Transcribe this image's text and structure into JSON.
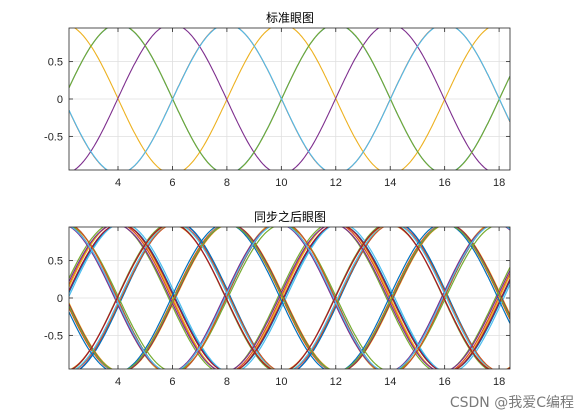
{
  "watermark": "CSDN @我爱C编程",
  "colors": {
    "blue": "#0072BD",
    "orange": "#D95319",
    "yellow": "#EDB120",
    "purple": "#7E2F8E",
    "green": "#77AC30",
    "cyan": "#4DBEEE",
    "red": "#A2142F"
  },
  "chart_data": [
    {
      "type": "line",
      "title": "标准眼图",
      "xlim": [
        2.2,
        18.4
      ],
      "ylim": [
        -0.95,
        0.95
      ],
      "xticks": [
        4,
        6,
        8,
        10,
        12,
        14,
        16,
        18
      ],
      "yticks": [
        -0.5,
        0,
        0.5
      ],
      "ytick_labels": [
        "-0.5",
        "0",
        "0.5"
      ],
      "grid": true,
      "period": 8,
      "crossings": [
        2,
        6,
        10,
        14,
        18
      ],
      "traces": 6,
      "spread": 0.02
    },
    {
      "type": "line",
      "title": "同步之后眼图",
      "xlim": [
        2.2,
        18.4
      ],
      "ylim": [
        -0.95,
        0.95
      ],
      "xticks": [
        4,
        6,
        8,
        10,
        12,
        14,
        16,
        18
      ],
      "yticks": [
        -0.5,
        0,
        0.5
      ],
      "ytick_labels": [
        "-0.5",
        "0",
        "0.5"
      ],
      "grid": true,
      "period": 8,
      "crossings": [
        2,
        6,
        10,
        14,
        18
      ],
      "traces": 28,
      "spread": 0.18
    }
  ]
}
